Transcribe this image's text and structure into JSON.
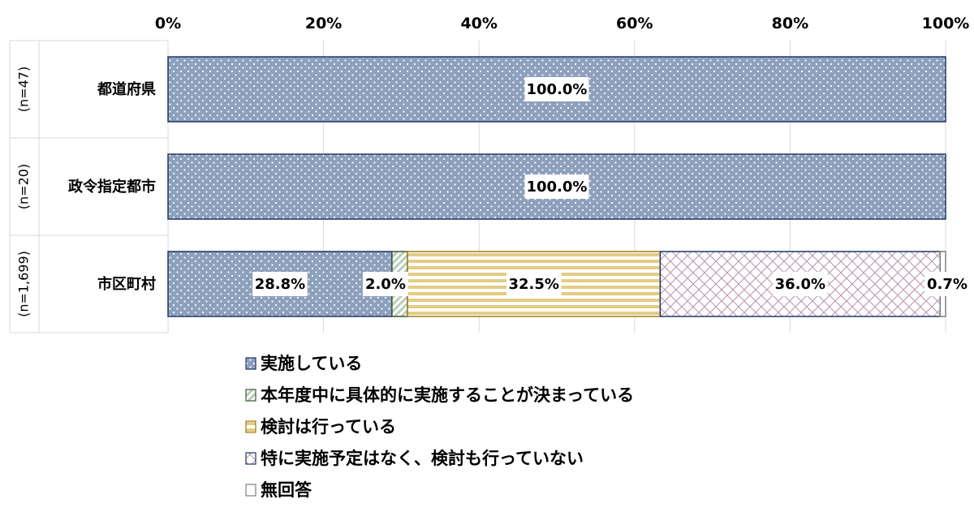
{
  "chart_data": {
    "type": "bar",
    "orientation": "horizontal",
    "stacked": "percent",
    "xlim": [
      0,
      100
    ],
    "ticks": [
      "0%",
      "20%",
      "40%",
      "60%",
      "80%",
      "100%"
    ],
    "rows": [
      {
        "label": "都道府県",
        "n_label": "(n=47)"
      },
      {
        "label": "政令指定都市",
        "n_label": "(n=20)"
      },
      {
        "label": "市区町村",
        "n_label": "(n=1,699)"
      }
    ],
    "series": [
      {
        "name": "実施している",
        "values": [
          100.0,
          100.0,
          28.8
        ],
        "labels": [
          "100.0%",
          "100.0%",
          "28.8%"
        ],
        "color": "#8da0bd",
        "pattern": "dots"
      },
      {
        "name": "本年度中に具体的に実施することが決まっている",
        "values": [
          0,
          0,
          2.0
        ],
        "labels": [
          "",
          "",
          "2.0%"
        ],
        "color": "#d8e4d8",
        "pattern": "diagonal"
      },
      {
        "name": "検討は行っている",
        "values": [
          0,
          0,
          32.5
        ],
        "labels": [
          "",
          "",
          "32.5%"
        ],
        "color": "#e8d597",
        "pattern": "horizontal-stripes"
      },
      {
        "name": "特に実施予定はなく、検討も行っていない",
        "values": [
          0,
          0,
          36.0
        ],
        "labels": [
          "",
          "",
          "36.0%"
        ],
        "color": "#d8b9cc",
        "pattern": "crosshatch"
      },
      {
        "name": "無回答",
        "values": [
          0,
          0,
          0.7
        ],
        "labels": [
          "",
          "",
          "0.7%"
        ],
        "color": "#ffffff",
        "pattern": "none"
      }
    ],
    "grid": true,
    "legend_position": "bottom"
  }
}
